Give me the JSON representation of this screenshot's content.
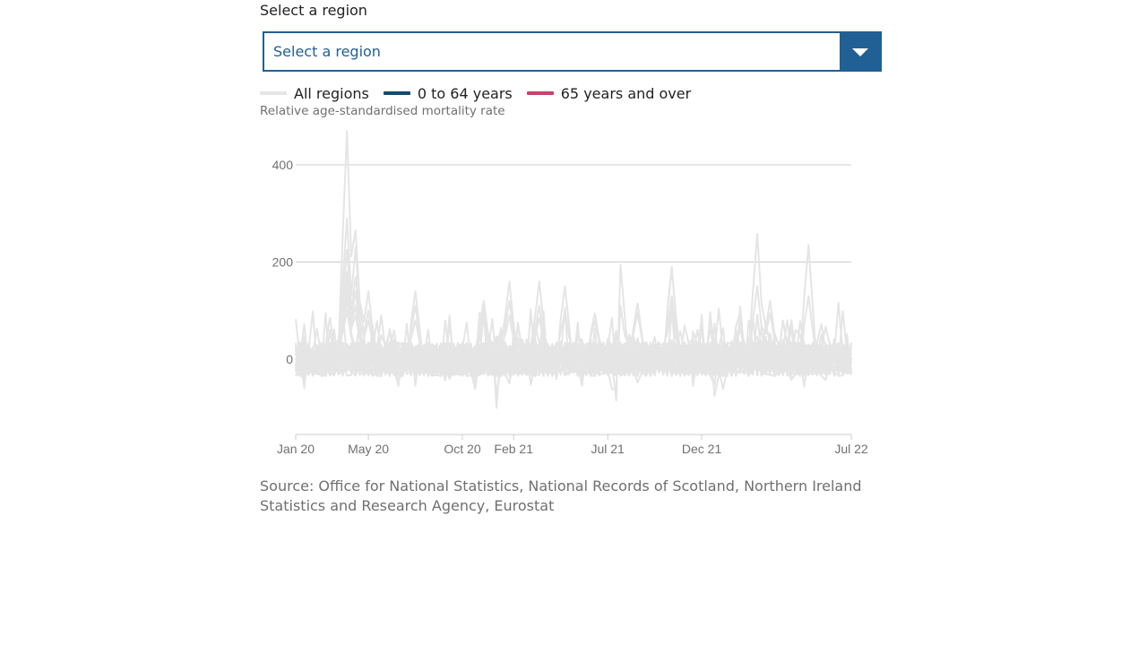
{
  "select": {
    "label": "Select a region",
    "value": "Select a region"
  },
  "legend": [
    {
      "label": "All regions",
      "color": "#e5e5e5"
    },
    {
      "label": "0 to 64 years",
      "color": "#0f4c6e"
    },
    {
      "label": "65 years and over",
      "color": "#c8426b"
    }
  ],
  "source": "Source: Office for National Statistics, National Records of Scotland, Northern Ireland Statistics and Research Agency, Eurostat",
  "chart_data": {
    "type": "line",
    "title": "",
    "xlabel": "",
    "ylabel": "Relative age-standardised mortality rate",
    "x_tick_labels": [
      "Jan 20",
      "May 20",
      "Oct 20",
      "Feb 21",
      "Jul 21",
      "Dec 21",
      "Jul 22"
    ],
    "x_tick_weeks": [
      0,
      17,
      39,
      51,
      73,
      95,
      130
    ],
    "y_ticks": [
      0,
      200,
      400
    ],
    "ylim": [
      -155,
      470
    ],
    "xlim_weeks": [
      0,
      130
    ],
    "grid": "horizontal",
    "legend_position": "top-left",
    "series_color": "#e5e5e5",
    "peaks": [
      {
        "week": 12,
        "values": [
          470,
          290,
          225,
          180,
          160,
          140,
          120,
          100
        ]
      },
      {
        "week": 14,
        "values": [
          265,
          230,
          170,
          140,
          110,
          90
        ]
      },
      {
        "week": 17,
        "values": [
          140,
          100,
          80
        ]
      },
      {
        "week": 28,
        "values": [
          140,
          110,
          80
        ]
      },
      {
        "week": 44,
        "values": [
          120,
          110,
          95,
          80
        ]
      },
      {
        "week": 50,
        "values": [
          160,
          120,
          90
        ]
      },
      {
        "week": 57,
        "values": [
          160,
          110,
          85
        ]
      },
      {
        "week": 63,
        "values": [
          150,
          100
        ]
      },
      {
        "week": 70,
        "values": [
          95,
          80
        ]
      },
      {
        "week": 76,
        "values": [
          195,
          110
        ]
      },
      {
        "week": 80,
        "values": [
          115,
          95
        ]
      },
      {
        "week": 88,
        "values": [
          190,
          185,
          130,
          110,
          100
        ]
      },
      {
        "week": 104,
        "values": [
          70,
          60
        ]
      },
      {
        "week": 108,
        "values": [
          258,
          150
        ]
      },
      {
        "week": 111,
        "values": [
          120,
          95
        ]
      },
      {
        "week": 120,
        "values": [
          235,
          130
        ]
      }
    ],
    "troughs": [
      {
        "week": 47,
        "values": [
          -100,
          -70
        ]
      },
      {
        "week": 75,
        "values": [
          -85,
          -60
        ]
      },
      {
        "week": 98,
        "values": [
          -75,
          -55
        ]
      }
    ]
  }
}
